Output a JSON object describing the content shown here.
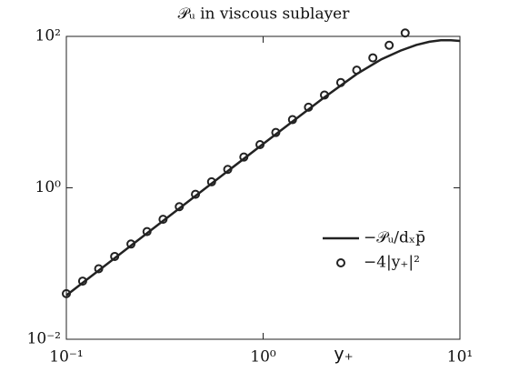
{
  "chart_data": {
    "type": "line",
    "title": "𝒫ᵤ in viscous sublayer",
    "xlabel": "y₊",
    "xscale": "log",
    "yscale": "log",
    "xlim": [
      0.1,
      10
    ],
    "ylim": [
      0.01,
      100
    ],
    "xticks": [
      {
        "value": 0.1,
        "label": "10⁻¹"
      },
      {
        "value": 1,
        "label": "10⁰"
      },
      {
        "value": 10,
        "label": "10¹"
      }
    ],
    "yticks": [
      {
        "value": 0.01,
        "label": "10⁻²"
      },
      {
        "value": 1,
        "label": "10⁰"
      },
      {
        "value": 100,
        "label": "10²"
      }
    ],
    "legend": "right",
    "series": [
      {
        "name": "−𝒫ᵤ/dₓp̄",
        "color": "#222222",
        "marker": "none",
        "x": [
          0.1,
          1,
          2,
          3,
          4,
          5,
          6,
          7,
          8,
          9,
          10
        ],
        "values": [
          0.038,
          3.8,
          15,
          32,
          50,
          65,
          77,
          85,
          89,
          89,
          87
        ]
      },
      {
        "name": "−4|y₊|²",
        "color": "#222222",
        "marker": "circle",
        "x": [
          0.1,
          0.121,
          0.146,
          0.176,
          0.213,
          0.257,
          0.31,
          0.375,
          0.453,
          0.547,
          0.661,
          0.798,
          0.964,
          1.16,
          1.41,
          1.7,
          2.05,
          2.48,
          2.99,
          3.61,
          4.37,
          5.27
        ],
        "values": [
          0.04,
          0.0586,
          0.0853,
          0.124,
          0.181,
          0.264,
          0.384,
          0.563,
          0.821,
          1.2,
          1.75,
          2.55,
          3.72,
          5.38,
          7.95,
          11.6,
          16.8,
          24.6,
          35.8,
          52.1,
          76.4,
          111
        ]
      }
    ]
  }
}
